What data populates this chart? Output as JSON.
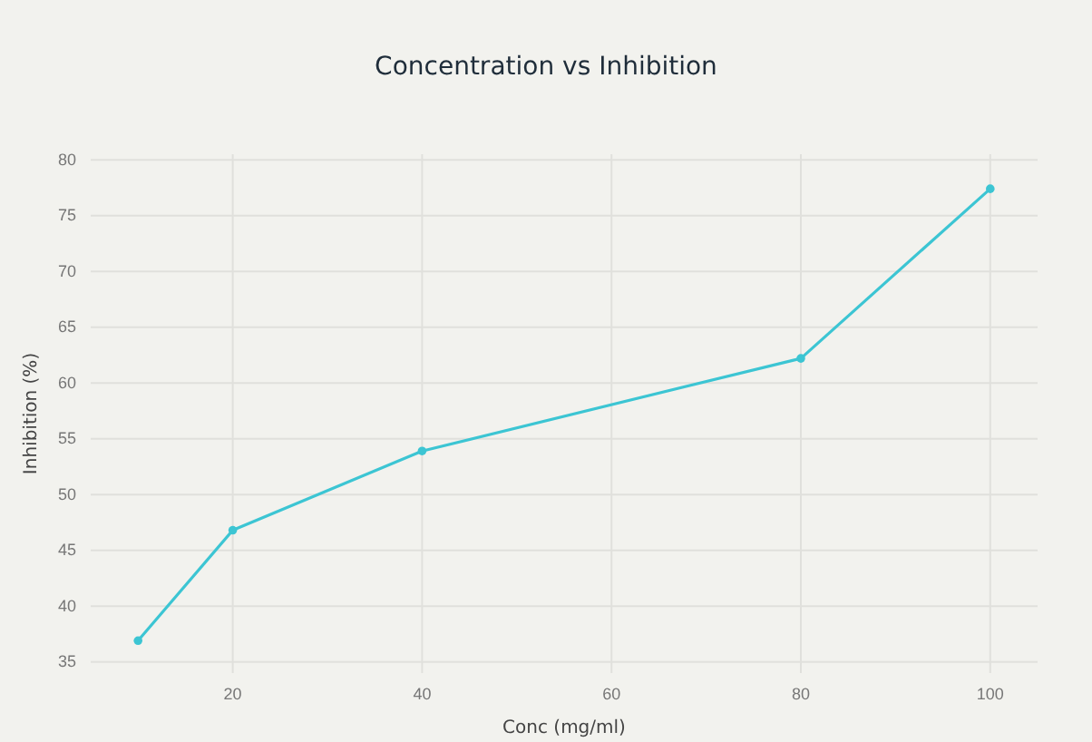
{
  "chart_data": {
    "type": "line",
    "title": "Concentration vs Inhibition",
    "xlabel": "Conc (mg/ml)",
    "ylabel": "Inhibition (%)",
    "x": [
      10,
      20,
      40,
      80,
      100
    ],
    "series": [
      {
        "color": "#3cc5d3",
        "values": [
          36.9,
          46.8,
          53.9,
          62.2,
          77.4
        ]
      }
    ],
    "xlim": [
      5,
      105
    ],
    "xticks": [
      20,
      40,
      60,
      80,
      100
    ],
    "ylim": [
      34,
      80.5
    ],
    "yticks": [
      35,
      40,
      45,
      50,
      55,
      60,
      65,
      70,
      75,
      80
    ],
    "grid": true,
    "marker": "circle",
    "line_style": "solid"
  }
}
